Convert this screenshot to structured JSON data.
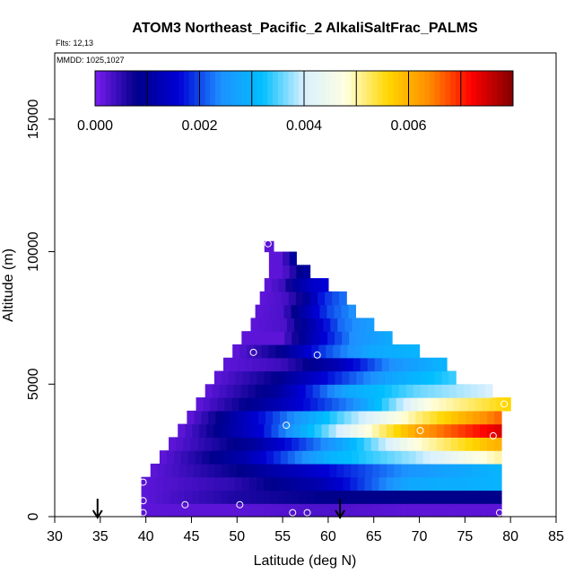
{
  "chart_data": {
    "type": "heatmap",
    "title": "ATOM3 Northeast_Pacific_2 AlkaliSaltFrac_PALMS",
    "flights_text": "Flts: 12,13",
    "dates_text": "MMDD: 1025,1027",
    "xlabel": "Latitude (deg N)",
    "ylabel": "Altitude (m)",
    "xlim": [
      30,
      85
    ],
    "ylim": [
      0,
      17500
    ],
    "x_ticks": [
      "30",
      "35",
      "40",
      "45",
      "50",
      "55",
      "60",
      "65",
      "70",
      "75",
      "80",
      "85"
    ],
    "y_ticks": [
      "0",
      "5000",
      "10000",
      "15000"
    ],
    "colorbar": {
      "range": [
        0,
        0.008
      ],
      "tick_labels": [
        "0.000",
        "0.002",
        "0.004",
        "0.006"
      ],
      "tick_values": [
        0,
        0.002,
        0.004,
        0.006
      ],
      "colors": [
        "#7a1cf0",
        "#00008b",
        "#0000d5",
        "#1e90ff",
        "#00bfff",
        "#d8f0ff",
        "#ffffe0",
        "#ffd700",
        "#ff8c00",
        "#ff0000",
        "#800000"
      ]
    },
    "layers": [
      {
        "alt": [
          0,
          500
        ],
        "lat": [
          39.5,
          79
        ],
        "values": [
          0.0002,
          0.0002,
          0.0003,
          0.0002,
          0.0002
        ]
      },
      {
        "alt": [
          500,
          1000
        ],
        "lat": [
          39.5,
          79
        ],
        "values": [
          0.0002,
          0.0006,
          0.0008,
          0.0008,
          0.0008
        ]
      },
      {
        "alt": [
          1000,
          1500
        ],
        "lat": [
          39.5,
          79
        ],
        "values": [
          0.0002,
          0.0005,
          0.0012,
          0.0028,
          0.003
        ]
      },
      {
        "alt": [
          1500,
          2000
        ],
        "lat": [
          40.5,
          79
        ],
        "values": [
          0.0002,
          0.0008,
          0.0016,
          0.0025,
          0.003
        ]
      },
      {
        "alt": [
          2000,
          2500
        ],
        "lat": [
          41.5,
          79
        ],
        "values": [
          0.0002,
          0.0012,
          0.003,
          0.0038,
          0.005
        ]
      },
      {
        "alt": [
          2500,
          3000
        ],
        "lat": [
          42.5,
          79
        ],
        "values": [
          0.0002,
          0.001,
          0.0026,
          0.0048,
          0.006
        ]
      },
      {
        "alt": [
          3000,
          3500
        ],
        "lat": [
          43.5,
          79
        ],
        "values": [
          0.0002,
          0.0016,
          0.004,
          0.0062,
          0.0074
        ]
      },
      {
        "alt": [
          3500,
          4000
        ],
        "lat": [
          44.5,
          79
        ],
        "values": [
          0.0002,
          0.0018,
          0.0036,
          0.0052,
          0.0066
        ]
      },
      {
        "alt": [
          4000,
          4500
        ],
        "lat": [
          45.5,
          80
        ],
        "values": [
          0.0002,
          0.0012,
          0.0024,
          0.0048,
          0.0056
        ]
      },
      {
        "alt": [
          4500,
          5000
        ],
        "lat": [
          46.5,
          78
        ],
        "values": [
          0.0002,
          0.001,
          0.0028,
          0.0036,
          0.004
        ]
      },
      {
        "alt": [
          5000,
          5500
        ],
        "lat": [
          47.5,
          74
        ],
        "values": [
          0.0002,
          0.0008,
          0.0018,
          0.0028,
          0.0034
        ]
      },
      {
        "alt": [
          5500,
          6000
        ],
        "lat": [
          48.5,
          73
        ],
        "values": [
          0.0002,
          0.0004,
          0.0012,
          0.0024,
          0.003
        ]
      },
      {
        "alt": [
          6000,
          6500
        ],
        "lat": [
          49.5,
          70
        ],
        "values": [
          0.0002,
          0.0008,
          0.002,
          0.0028,
          0.003
        ]
      },
      {
        "alt": [
          6500,
          7000
        ],
        "lat": [
          50.5,
          67
        ],
        "values": [
          0.0002,
          0.0002,
          0.0014,
          0.0024,
          0.0028
        ]
      },
      {
        "alt": [
          7000,
          7500
        ],
        "lat": [
          51.5,
          65
        ],
        "values": [
          0.0002,
          0.0003,
          0.0012,
          0.0022,
          0.0026
        ]
      },
      {
        "alt": [
          7500,
          8000
        ],
        "lat": [
          52,
          63
        ],
        "values": [
          0.0002,
          0.0003,
          0.0012,
          0.002,
          0.0024
        ]
      },
      {
        "alt": [
          8000,
          8500
        ],
        "lat": [
          52.5,
          62
        ],
        "values": [
          0.0002,
          0.0003,
          0.0008,
          0.0018,
          0.0022
        ]
      },
      {
        "alt": [
          8500,
          9000
        ],
        "lat": [
          53,
          60
        ],
        "values": [
          0.0002,
          0.0004,
          0.001,
          0.0014,
          0.0016
        ]
      },
      {
        "alt": [
          9000,
          9500
        ],
        "lat": [
          53.5,
          58
        ],
        "values": [
          0.0002,
          0.0002,
          0.0004,
          0.0008,
          0.001
        ]
      },
      {
        "alt": [
          9500,
          10000
        ],
        "lat": [
          53.5,
          56.5
        ],
        "values": [
          0.0002,
          0.0002,
          0.0002,
          0.0006,
          0.001
        ]
      },
      {
        "alt": [
          10000,
          10400
        ],
        "lat": [
          53,
          54
        ],
        "values": [
          0.0002,
          0.0002,
          0.0002,
          0.0002,
          0.0002
        ]
      }
    ],
    "sample_points": [
      {
        "lat": 39.7,
        "alt": 150
      },
      {
        "lat": 39.7,
        "alt": 600
      },
      {
        "lat": 39.7,
        "alt": 1300
      },
      {
        "lat": 44.3,
        "alt": 450
      },
      {
        "lat": 50.3,
        "alt": 450
      },
      {
        "lat": 56.1,
        "alt": 150
      },
      {
        "lat": 57.7,
        "alt": 150
      },
      {
        "lat": 78.8,
        "alt": 150
      },
      {
        "lat": 55.4,
        "alt": 3450
      },
      {
        "lat": 70.1,
        "alt": 3250
      },
      {
        "lat": 78.1,
        "alt": 3050
      },
      {
        "lat": 79.3,
        "alt": 4250
      },
      {
        "lat": 51.8,
        "alt": 6200
      },
      {
        "lat": 58.8,
        "alt": 6100
      },
      {
        "lat": 53.4,
        "alt": 10300
      }
    ],
    "arrows_lat": [
      34.7,
      61.3
    ]
  }
}
